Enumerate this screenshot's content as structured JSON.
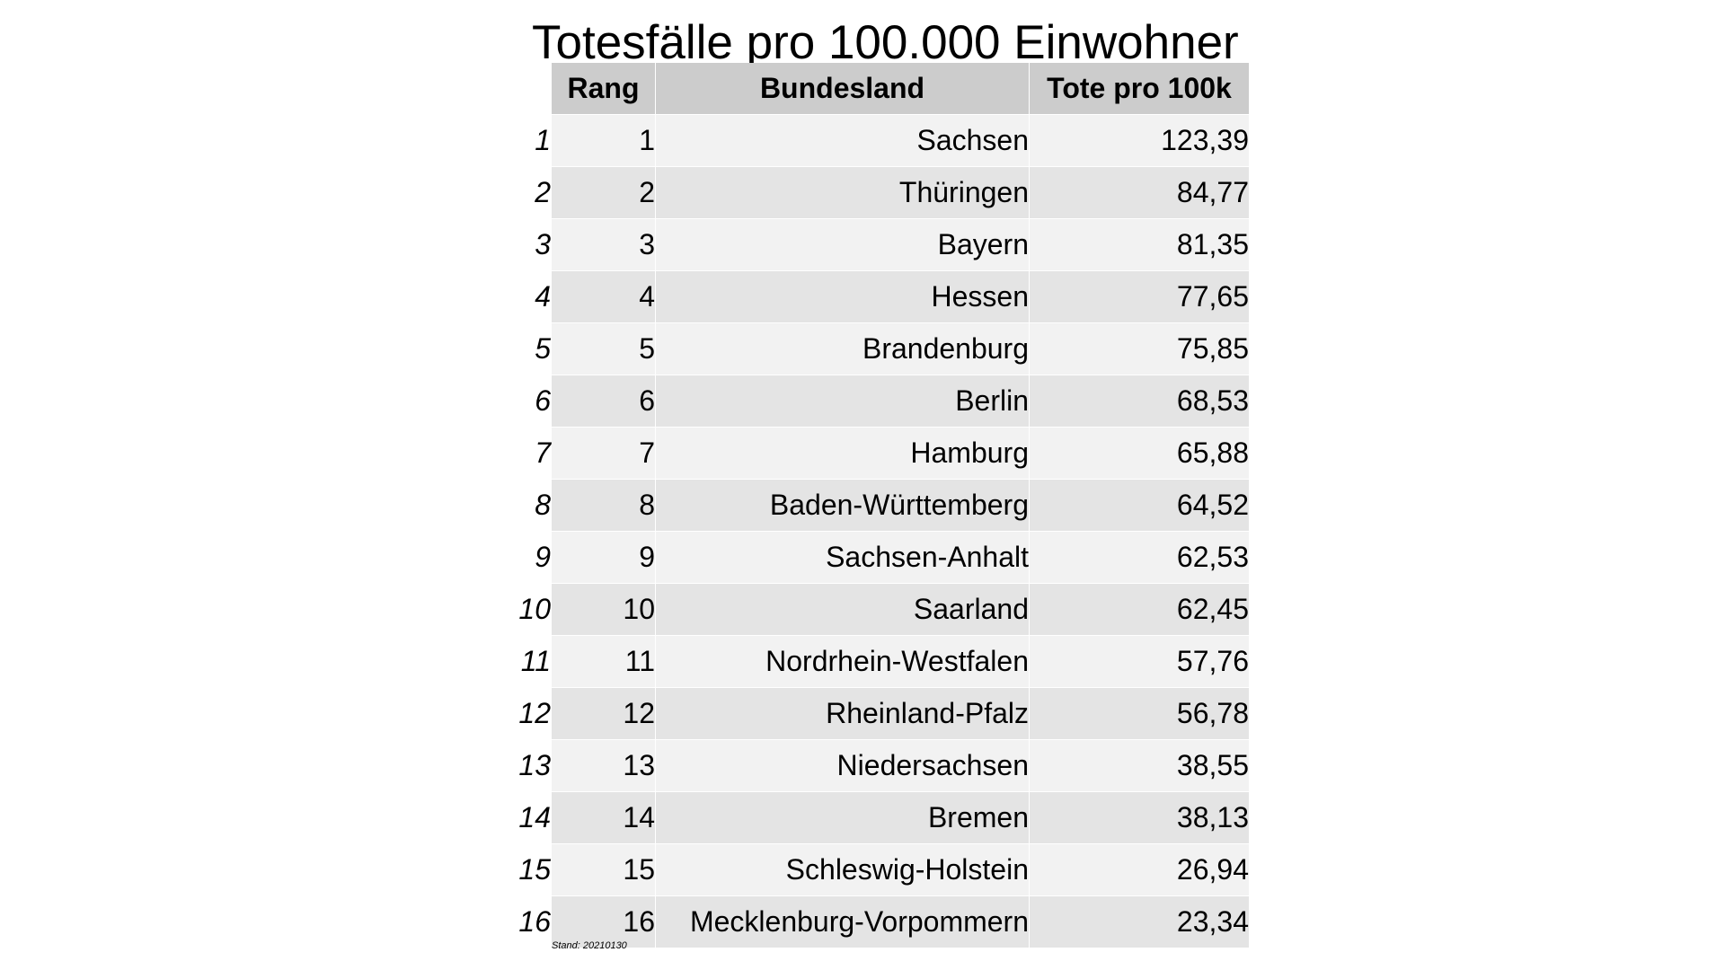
{
  "title": "Totesfälle pro 100.000 Einwohner",
  "table": {
    "headers": {
      "rang": "Rang",
      "bundesland": "Bundesland",
      "tote": "Tote pro 100k"
    },
    "rows": [
      {
        "index": "1",
        "rang": "1",
        "bundesland": "Sachsen",
        "tote": "123,39"
      },
      {
        "index": "2",
        "rang": "2",
        "bundesland": "Thüringen",
        "tote": "84,77"
      },
      {
        "index": "3",
        "rang": "3",
        "bundesland": "Bayern",
        "tote": "81,35"
      },
      {
        "index": "4",
        "rang": "4",
        "bundesland": "Hessen",
        "tote": "77,65"
      },
      {
        "index": "5",
        "rang": "5",
        "bundesland": "Brandenburg",
        "tote": "75,85"
      },
      {
        "index": "6",
        "rang": "6",
        "bundesland": "Berlin",
        "tote": "68,53"
      },
      {
        "index": "7",
        "rang": "7",
        "bundesland": "Hamburg",
        "tote": "65,88"
      },
      {
        "index": "8",
        "rang": "8",
        "bundesland": "Baden-Württemberg",
        "tote": "64,52"
      },
      {
        "index": "9",
        "rang": "9",
        "bundesland": "Sachsen-Anhalt",
        "tote": "62,53"
      },
      {
        "index": "10",
        "rang": "10",
        "bundesland": "Saarland",
        "tote": "62,45"
      },
      {
        "index": "11",
        "rang": "11",
        "bundesland": "Nordrhein-Westfalen",
        "tote": "57,76"
      },
      {
        "index": "12",
        "rang": "12",
        "bundesland": "Rheinland-Pfalz",
        "tote": "56,78"
      },
      {
        "index": "13",
        "rang": "13",
        "bundesland": "Niedersachsen",
        "tote": "38,55"
      },
      {
        "index": "14",
        "rang": "14",
        "bundesland": "Bremen",
        "tote": "38,13"
      },
      {
        "index": "15",
        "rang": "15",
        "bundesland": "Schleswig-Holstein",
        "tote": "26,94"
      },
      {
        "index": "16",
        "rang": "16",
        "bundesland": "Mecklenburg-Vorpommern",
        "tote": "23,34"
      }
    ]
  },
  "footnote": "Stand: 20210130"
}
